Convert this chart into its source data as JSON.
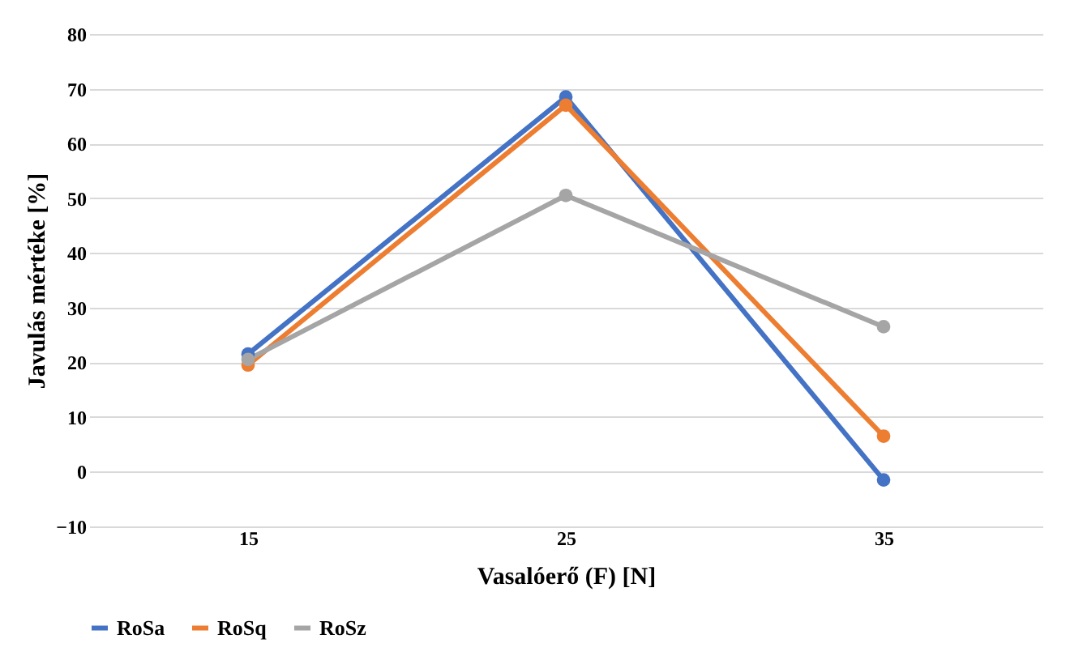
{
  "chart_data": {
    "type": "line",
    "xlabel": "Vasalóerő (F) [N]",
    "ylabel": "Javulás mértéke [%]",
    "categories": [
      "15",
      "25",
      "35"
    ],
    "series": [
      {
        "name": "RoSa",
        "color": "#4472c4",
        "values": [
          21.5,
          68.5,
          -1.5
        ]
      },
      {
        "name": "RoSq",
        "color": "#ed7d31",
        "values": [
          19.5,
          67,
          6.5
        ]
      },
      {
        "name": "RoSz",
        "color": "#a5a5a5",
        "values": [
          20.5,
          50.5,
          26.5
        ]
      }
    ],
    "ylim": [
      -10,
      80
    ],
    "yticks": [
      -10,
      0,
      10,
      20,
      30,
      40,
      50,
      60,
      70,
      80
    ],
    "grid": "y",
    "legend": "bottom",
    "marker": "circle",
    "line_style": "solid"
  }
}
